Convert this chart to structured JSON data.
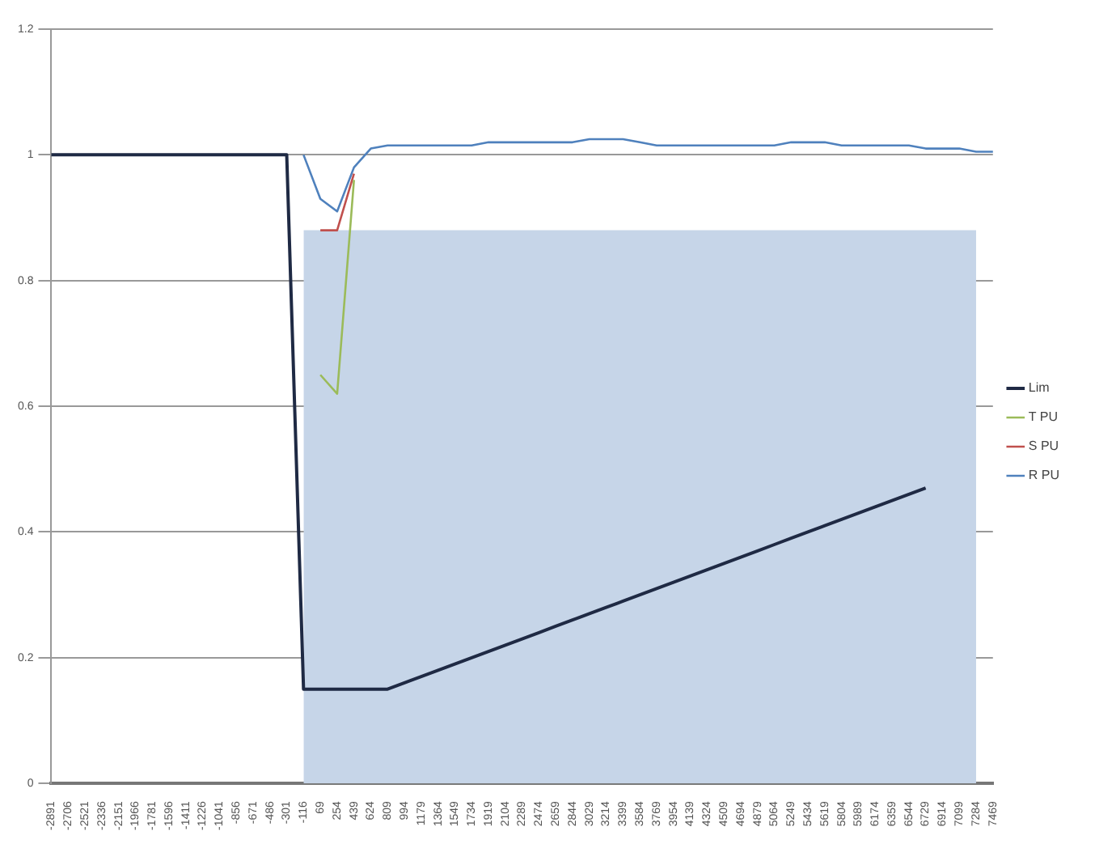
{
  "chart_data": {
    "type": "line",
    "categories": [
      "-2891",
      "-2706",
      "-2521",
      "-2336",
      "-2151",
      "-1966",
      "-1781",
      "-1596",
      "-1411",
      "-1226",
      "-1041",
      "-856",
      "-671",
      "-486",
      "-301",
      "-116",
      "69",
      "254",
      "439",
      "624",
      "809",
      "994",
      "1179",
      "1364",
      "1549",
      "1734",
      "1919",
      "2104",
      "2289",
      "2474",
      "2659",
      "2844",
      "3029",
      "3214",
      "3399",
      "3584",
      "3769",
      "3954",
      "4139",
      "4324",
      "4509",
      "4694",
      "4879",
      "5064",
      "5249",
      "5434",
      "5619",
      "5804",
      "5989",
      "6174",
      "6359",
      "6544",
      "6729",
      "6914",
      "7099",
      "7284",
      "7469"
    ],
    "series": [
      {
        "type": "area",
        "color": "#c6d5e8",
        "values": [
          null,
          null,
          null,
          null,
          null,
          null,
          null,
          null,
          null,
          null,
          null,
          null,
          null,
          null,
          null,
          0.88,
          0.88,
          0.88,
          0.88,
          0.88,
          0.88,
          0.88,
          0.88,
          0.88,
          0.88,
          0.88,
          0.88,
          0.88,
          0.88,
          0.88,
          0.88,
          0.88,
          0.88,
          0.88,
          0.88,
          0.88,
          0.88,
          0.88,
          0.88,
          0.88,
          0.88,
          0.88,
          0.88,
          0.88,
          0.88,
          0.88,
          0.88,
          0.88,
          0.88,
          0.88,
          0.88,
          0.88,
          0.88,
          0.88,
          0.88,
          0.88,
          null
        ]
      },
      {
        "name": "R PU",
        "color": "#4f81bd",
        "values": [
          null,
          null,
          null,
          null,
          null,
          null,
          null,
          null,
          null,
          null,
          null,
          null,
          null,
          null,
          null,
          1,
          0.93,
          0.91,
          0.98,
          1.01,
          1.015,
          1.015,
          1.015,
          1.015,
          1.015,
          1.015,
          1.02,
          1.02,
          1.02,
          1.02,
          1.02,
          1.02,
          1.025,
          1.025,
          1.025,
          1.02,
          1.015,
          1.015,
          1.015,
          1.015,
          1.015,
          1.015,
          1.015,
          1.015,
          1.02,
          1.02,
          1.02,
          1.015,
          1.015,
          1.015,
          1.015,
          1.015,
          1.01,
          1.01,
          1.01,
          1.005,
          1.005
        ]
      },
      {
        "name": "S PU",
        "color": "#c0504d",
        "values": [
          null,
          null,
          null,
          null,
          null,
          null,
          null,
          null,
          null,
          null,
          null,
          null,
          null,
          null,
          null,
          null,
          0.88,
          0.88,
          0.97,
          null,
          null,
          null,
          null,
          null,
          null,
          null,
          null,
          null,
          null,
          null,
          null,
          null,
          null,
          null,
          null,
          null,
          null,
          null,
          null,
          null,
          null,
          null,
          null,
          null,
          null,
          null,
          null,
          null,
          null,
          null,
          null,
          null,
          null,
          null,
          null,
          null,
          null
        ]
      },
      {
        "name": "T PU",
        "color": "#9bbb59",
        "values": [
          null,
          null,
          null,
          null,
          null,
          null,
          null,
          null,
          null,
          null,
          null,
          null,
          null,
          null,
          null,
          null,
          0.65,
          0.62,
          0.96,
          null,
          null,
          null,
          null,
          null,
          null,
          null,
          null,
          null,
          null,
          null,
          null,
          null,
          null,
          null,
          null,
          null,
          null,
          null,
          null,
          null,
          null,
          null,
          null,
          null,
          null,
          null,
          null,
          null,
          null,
          null,
          null,
          null,
          null,
          null,
          null,
          null,
          null
        ]
      },
      {
        "name": "Lim",
        "color": "#1f2a44",
        "values": [
          1,
          1,
          1,
          1,
          1,
          1,
          1,
          1,
          1,
          1,
          1,
          1,
          1,
          1,
          1,
          0.15,
          0.15,
          0.15,
          0.15,
          0.15,
          0.15,
          0.16,
          0.17,
          0.18,
          0.19,
          0.2,
          0.21,
          0.22,
          0.23,
          0.24,
          0.25,
          0.26,
          0.27,
          0.28,
          0.29,
          0.3,
          0.31,
          0.32,
          0.33,
          0.34,
          0.35,
          0.36,
          0.37,
          0.38,
          0.39,
          0.4,
          0.41,
          0.42,
          0.43,
          0.44,
          0.45,
          0.46,
          0.47,
          null,
          null,
          null,
          null
        ]
      }
    ],
    "ylim": [
      0,
      1.2
    ],
    "yticks": [
      0,
      0.2,
      0.4,
      0.6,
      0.8,
      1,
      1.2
    ],
    "grid": "y",
    "legend": "right",
    "marker": "none",
    "line_style": "solid"
  }
}
